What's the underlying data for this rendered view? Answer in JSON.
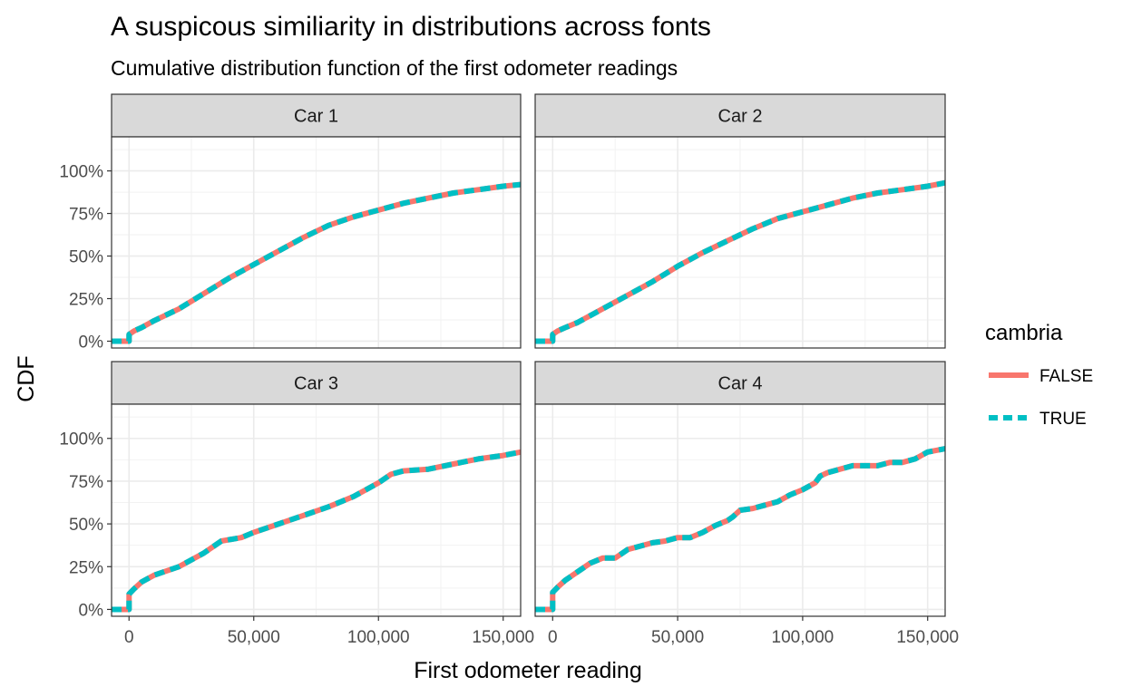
{
  "chart_data": {
    "type": "line",
    "title": "A suspicous similiarity in distributions across fonts",
    "subtitle": "Cumulative distribution function of the first odometer readings",
    "xlabel": "First odometer reading",
    "ylabel": "CDF",
    "xlim": [
      -7000,
      157000
    ],
    "ylim": [
      -0.04,
      1.2
    ],
    "x_ticks": [
      0,
      50000,
      100000,
      150000
    ],
    "x_tick_labels": [
      "0",
      "50,000",
      "100,000",
      "150,000"
    ],
    "y_ticks": [
      0,
      0.25,
      0.5,
      0.75,
      1.0
    ],
    "y_tick_labels": [
      "0%",
      "25%",
      "50%",
      "75%",
      "100%"
    ],
    "grid": true,
    "legend": {
      "title": "cambria",
      "position": "right",
      "entries": [
        {
          "label": "FALSE",
          "color": "#F8766D",
          "style": "solid"
        },
        {
          "label": "TRUE",
          "color": "#00BFC4",
          "style": "dashed"
        }
      ]
    },
    "facets": [
      {
        "label": "Car 1",
        "series": [
          {
            "name": "FALSE",
            "color": "#F8766D",
            "x": [
              -7000,
              0,
              0,
              2000,
              5000,
              10000,
              20000,
              30000,
              40000,
              50000,
              60000,
              70000,
              80000,
              90000,
              100000,
              110000,
              120000,
              130000,
              140000,
              150000,
              157000
            ],
            "y": [
              0,
              0,
              0.04,
              0.06,
              0.08,
              0.12,
              0.19,
              0.28,
              0.37,
              0.45,
              0.53,
              0.61,
              0.68,
              0.73,
              0.77,
              0.81,
              0.84,
              0.87,
              0.89,
              0.91,
              0.92
            ]
          },
          {
            "name": "TRUE",
            "color": "#00BFC4",
            "x": [
              -7000,
              0,
              0,
              2000,
              5000,
              10000,
              20000,
              30000,
              40000,
              50000,
              60000,
              70000,
              80000,
              90000,
              100000,
              110000,
              120000,
              130000,
              140000,
              150000,
              157000
            ],
            "y": [
              0,
              0,
              0.04,
              0.06,
              0.08,
              0.12,
              0.19,
              0.28,
              0.37,
              0.45,
              0.53,
              0.61,
              0.68,
              0.73,
              0.77,
              0.81,
              0.84,
              0.87,
              0.89,
              0.91,
              0.92
            ]
          }
        ]
      },
      {
        "label": "Car 2",
        "series": [
          {
            "name": "FALSE",
            "color": "#F8766D",
            "x": [
              -7000,
              0,
              0,
              2000,
              5000,
              10000,
              20000,
              30000,
              40000,
              50000,
              60000,
              70000,
              80000,
              90000,
              100000,
              110000,
              120000,
              130000,
              140000,
              150000,
              157000
            ],
            "y": [
              0,
              0,
              0.04,
              0.06,
              0.08,
              0.11,
              0.19,
              0.27,
              0.35,
              0.44,
              0.52,
              0.59,
              0.66,
              0.72,
              0.76,
              0.8,
              0.84,
              0.87,
              0.89,
              0.91,
              0.93
            ]
          },
          {
            "name": "TRUE",
            "color": "#00BFC4",
            "x": [
              -7000,
              0,
              0,
              2000,
              5000,
              10000,
              20000,
              30000,
              40000,
              50000,
              60000,
              70000,
              80000,
              90000,
              100000,
              110000,
              120000,
              130000,
              140000,
              150000,
              157000
            ],
            "y": [
              0,
              0,
              0.04,
              0.06,
              0.08,
              0.11,
              0.19,
              0.27,
              0.35,
              0.44,
              0.52,
              0.59,
              0.66,
              0.72,
              0.76,
              0.8,
              0.84,
              0.87,
              0.89,
              0.91,
              0.93
            ]
          }
        ]
      },
      {
        "label": "Car 3",
        "series": [
          {
            "name": "FALSE",
            "color": "#F8766D",
            "x": [
              -7000,
              0,
              0,
              2000,
              5000,
              10000,
              20000,
              30000,
              37000,
              45000,
              50000,
              60000,
              70000,
              80000,
              90000,
              100000,
              105000,
              110000,
              120000,
              130000,
              140000,
              150000,
              157000
            ],
            "y": [
              0,
              0,
              0.09,
              0.12,
              0.16,
              0.2,
              0.25,
              0.33,
              0.4,
              0.42,
              0.45,
              0.5,
              0.55,
              0.6,
              0.66,
              0.74,
              0.79,
              0.81,
              0.82,
              0.85,
              0.88,
              0.9,
              0.92
            ]
          },
          {
            "name": "TRUE",
            "color": "#00BFC4",
            "x": [
              -7000,
              0,
              0,
              2000,
              5000,
              10000,
              20000,
              30000,
              37000,
              45000,
              50000,
              60000,
              70000,
              80000,
              90000,
              100000,
              105000,
              110000,
              120000,
              130000,
              140000,
              150000,
              157000
            ],
            "y": [
              0,
              0,
              0.09,
              0.12,
              0.16,
              0.2,
              0.25,
              0.33,
              0.4,
              0.42,
              0.45,
              0.5,
              0.55,
              0.6,
              0.66,
              0.74,
              0.79,
              0.81,
              0.82,
              0.85,
              0.88,
              0.9,
              0.92
            ]
          }
        ]
      },
      {
        "label": "Car 4",
        "series": [
          {
            "name": "FALSE",
            "color": "#F8766D",
            "x": [
              -7000,
              0,
              0,
              2000,
              5000,
              10000,
              15000,
              20000,
              25000,
              30000,
              35000,
              40000,
              45000,
              50000,
              55000,
              60000,
              65000,
              70000,
              72000,
              75000,
              80000,
              85000,
              90000,
              95000,
              100000,
              105000,
              107000,
              110000,
              115000,
              120000,
              125000,
              130000,
              135000,
              140000,
              145000,
              150000,
              157000
            ],
            "y": [
              0,
              0,
              0.1,
              0.13,
              0.17,
              0.22,
              0.27,
              0.3,
              0.3,
              0.35,
              0.37,
              0.39,
              0.4,
              0.42,
              0.42,
              0.45,
              0.49,
              0.52,
              0.54,
              0.58,
              0.59,
              0.61,
              0.63,
              0.67,
              0.7,
              0.74,
              0.78,
              0.8,
              0.82,
              0.84,
              0.84,
              0.84,
              0.86,
              0.86,
              0.88,
              0.92,
              0.94
            ]
          },
          {
            "name": "TRUE",
            "color": "#00BFC4",
            "x": [
              -7000,
              0,
              0,
              2000,
              5000,
              10000,
              15000,
              20000,
              25000,
              30000,
              35000,
              40000,
              45000,
              50000,
              55000,
              60000,
              65000,
              70000,
              72000,
              75000,
              80000,
              85000,
              90000,
              95000,
              100000,
              105000,
              107000,
              110000,
              115000,
              120000,
              125000,
              130000,
              135000,
              140000,
              145000,
              150000,
              157000
            ],
            "y": [
              0,
              0,
              0.1,
              0.13,
              0.17,
              0.22,
              0.27,
              0.3,
              0.3,
              0.35,
              0.37,
              0.39,
              0.4,
              0.42,
              0.42,
              0.45,
              0.49,
              0.52,
              0.54,
              0.58,
              0.59,
              0.61,
              0.63,
              0.67,
              0.7,
              0.74,
              0.78,
              0.8,
              0.82,
              0.84,
              0.84,
              0.84,
              0.86,
              0.86,
              0.88,
              0.92,
              0.94
            ]
          }
        ]
      }
    ]
  }
}
